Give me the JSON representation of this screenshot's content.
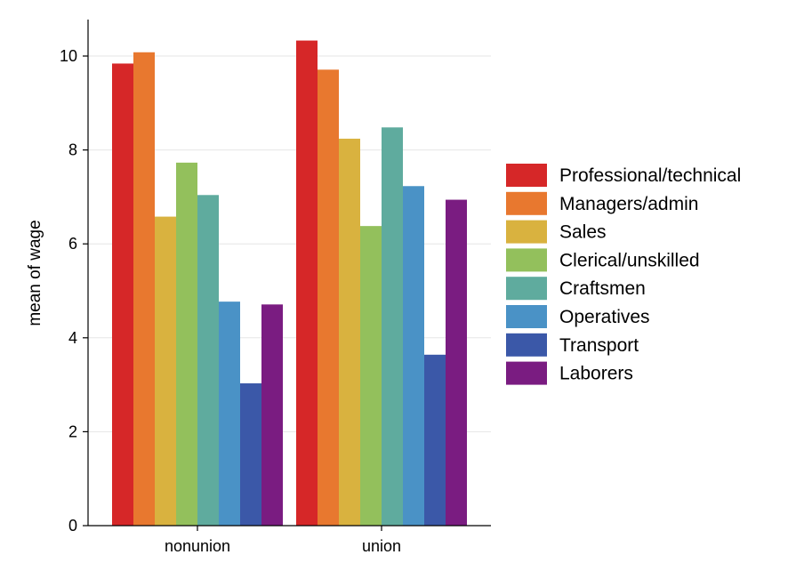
{
  "chart_data": {
    "type": "bar",
    "ylabel": "mean of wage",
    "xlabel": "",
    "ylim": [
      0,
      10.8
    ],
    "yticks": [
      0,
      2,
      4,
      6,
      8,
      10
    ],
    "grid": true,
    "legend_position": "right",
    "categories": [
      "nonunion",
      "union"
    ],
    "series": [
      {
        "name": "Professional/technical",
        "color": "#d62728",
        "values": [
          9.84,
          10.33
        ]
      },
      {
        "name": "Managers/admin",
        "color": "#e8782f",
        "values": [
          10.08,
          9.71
        ]
      },
      {
        "name": "Sales",
        "color": "#d9b23f",
        "values": [
          6.58,
          8.24
        ]
      },
      {
        "name": "Clerical/unskilled",
        "color": "#93c05c",
        "values": [
          7.73,
          6.38
        ]
      },
      {
        "name": "Craftsmen",
        "color": "#5fab9e",
        "values": [
          7.04,
          8.48
        ]
      },
      {
        "name": "Operatives",
        "color": "#4a92c6",
        "values": [
          4.77,
          7.23
        ]
      },
      {
        "name": "Transport",
        "color": "#3b58a8",
        "values": [
          3.03,
          3.64
        ]
      },
      {
        "name": "Laborers",
        "color": "#7a1c81",
        "values": [
          4.71,
          6.94
        ]
      }
    ]
  }
}
